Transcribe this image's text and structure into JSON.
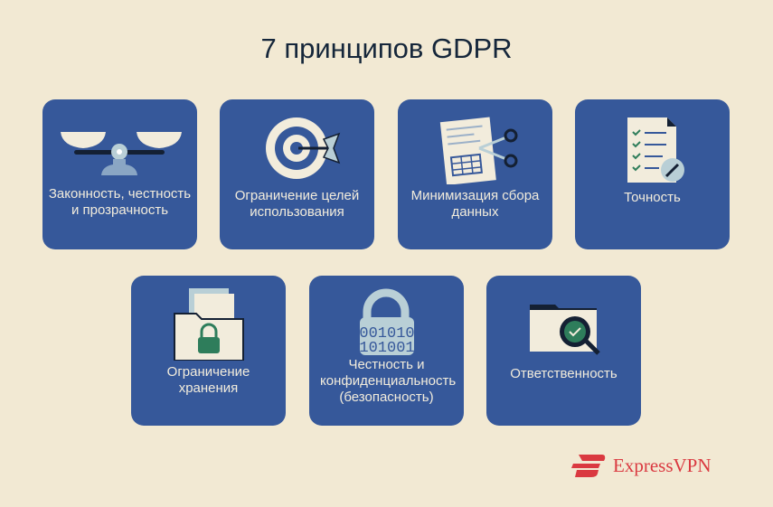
{
  "title": "7 принципов GDPR",
  "principles": [
    {
      "label": "Законность, честность и прозрачность",
      "icon": "scales-icon"
    },
    {
      "label": "Ограничение целей использования",
      "icon": "target-icon"
    },
    {
      "label": "Минимизация сбора данных",
      "icon": "document-scissors-icon"
    },
    {
      "label": "Точность",
      "icon": "checklist-pen-icon"
    },
    {
      "label": "Ограничение хранения",
      "icon": "locked-folder-icon"
    },
    {
      "label": "Честность и конфиденциальность (безопасность)",
      "icon": "binary-lock-icon"
    },
    {
      "label": "Ответственность",
      "icon": "folder-magnifier-check-icon"
    }
  ],
  "brand": {
    "name": "ExpressVPN",
    "color": "#da3940"
  },
  "colors": {
    "background": "#f2e9d3",
    "card": "#36589a"
  }
}
